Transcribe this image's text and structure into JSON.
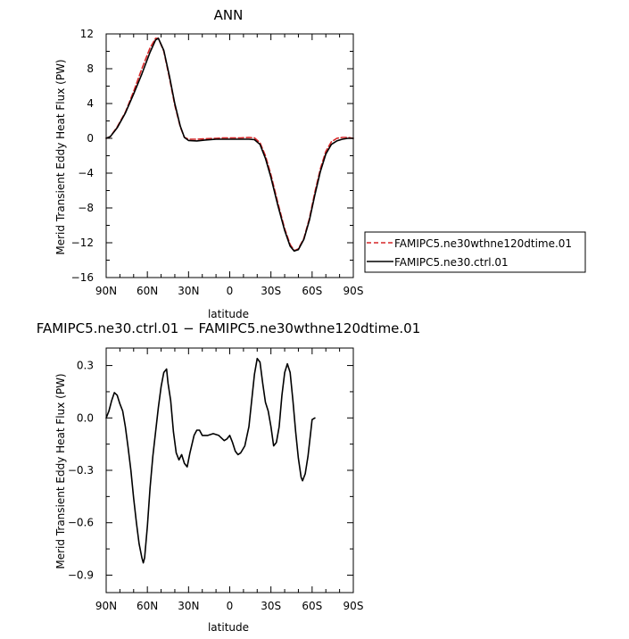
{
  "chart_data": [
    {
      "type": "line",
      "title": "ANN",
      "xlabel": "latitude",
      "ylabel": "Merid Transient Eddy Heat Flux (PW)",
      "x_tick_labels": [
        "90N",
        "60N",
        "30N",
        "0",
        "30S",
        "60S",
        "90S"
      ],
      "x_tick_values": [
        90,
        60,
        30,
        0,
        -30,
        -60,
        -90
      ],
      "xlim": [
        90,
        -90
      ],
      "ylim": [
        -16,
        12
      ],
      "y_ticks": [
        12,
        8,
        4,
        0,
        -4,
        -8,
        -12,
        -16
      ],
      "y_tick_labels": [
        "12",
        "8",
        "4",
        "0",
        "−4",
        "−8",
        "−12",
        "−16"
      ],
      "legend_placement": "right",
      "series": [
        {
          "name": "FAMIPC5.ne30wthne120dtime.01",
          "color": "#d62728",
          "dash": true,
          "points": [
            [
              90,
              0
            ],
            [
              87,
              0.2
            ],
            [
              82,
              1.3
            ],
            [
              76,
              3.0
            ],
            [
              70,
              5.4
            ],
            [
              64,
              8.0
            ],
            [
              58,
              10.4
            ],
            [
              54,
              11.5
            ],
            [
              52,
              11.5
            ],
            [
              48,
              10.0
            ],
            [
              44,
              7.0
            ],
            [
              40,
              3.8
            ],
            [
              36,
              1.3
            ],
            [
              33,
              0.1
            ],
            [
              30,
              -0.1
            ],
            [
              24,
              -0.1
            ],
            [
              18,
              -0.05
            ],
            [
              10,
              0
            ],
            [
              5,
              0.05
            ],
            [
              0,
              0.05
            ],
            [
              -8,
              0.05
            ],
            [
              -14,
              0.1
            ],
            [
              -18,
              0.05
            ],
            [
              -22,
              -0.5
            ],
            [
              -26,
              -2.0
            ],
            [
              -30,
              -4.2
            ],
            [
              -35,
              -7.4
            ],
            [
              -40,
              -10.4
            ],
            [
              -44,
              -12.2
            ],
            [
              -47,
              -12.9
            ],
            [
              -50,
              -12.7
            ],
            [
              -54,
              -11.5
            ],
            [
              -58,
              -9.2
            ],
            [
              -62,
              -6.2
            ],
            [
              -66,
              -3.5
            ],
            [
              -70,
              -1.5
            ],
            [
              -74,
              -0.4
            ],
            [
              -78,
              0.0
            ],
            [
              -82,
              0.1
            ],
            [
              -86,
              0.1
            ],
            [
              -90,
              0
            ]
          ]
        },
        {
          "name": "FAMIPC5.ne30.ctrl.01",
          "color": "#000000",
          "dash": false,
          "points": [
            [
              90,
              0
            ],
            [
              87,
              0.2
            ],
            [
              82,
              1.2
            ],
            [
              76,
              2.9
            ],
            [
              70,
              5.1
            ],
            [
              64,
              7.4
            ],
            [
              58,
              9.9
            ],
            [
              54,
              11.3
            ],
            [
              52,
              11.5
            ],
            [
              48,
              10.1
            ],
            [
              44,
              7.2
            ],
            [
              40,
              4.0
            ],
            [
              36,
              1.4
            ],
            [
              33,
              0.1
            ],
            [
              30,
              -0.25
            ],
            [
              24,
              -0.3
            ],
            [
              18,
              -0.2
            ],
            [
              10,
              -0.1
            ],
            [
              5,
              -0.1
            ],
            [
              0,
              -0.1
            ],
            [
              -8,
              -0.1
            ],
            [
              -14,
              -0.1
            ],
            [
              -18,
              -0.15
            ],
            [
              -22,
              -0.7
            ],
            [
              -26,
              -2.3
            ],
            [
              -30,
              -4.5
            ],
            [
              -35,
              -7.7
            ],
            [
              -40,
              -10.6
            ],
            [
              -44,
              -12.4
            ],
            [
              -47,
              -12.95
            ],
            [
              -50,
              -12.8
            ],
            [
              -54,
              -11.6
            ],
            [
              -58,
              -9.4
            ],
            [
              -62,
              -6.5
            ],
            [
              -66,
              -3.8
            ],
            [
              -70,
              -1.8
            ],
            [
              -74,
              -0.7
            ],
            [
              -78,
              -0.3
            ],
            [
              -82,
              -0.1
            ],
            [
              -86,
              0
            ],
            [
              -90,
              0
            ]
          ]
        }
      ]
    },
    {
      "type": "line",
      "title": "FAMIPC5.ne30.ctrl.01 − FAMIPC5.ne30wthne120dtime.01",
      "xlabel": "latitude",
      "ylabel": "Merid Transient Eddy Heat Flux (PW)",
      "x_tick_labels": [
        "90N",
        "60N",
        "30N",
        "0",
        "30S",
        "60S",
        "90S"
      ],
      "x_tick_values": [
        90,
        60,
        30,
        0,
        -30,
        -60,
        -90
      ],
      "xlim": [
        90,
        -90
      ],
      "ylim": [
        -1.0,
        0.4
      ],
      "y_ticks": [
        0.3,
        0.0,
        -0.3,
        -0.6,
        -0.9
      ],
      "y_tick_labels": [
        "0.3",
        "0.0",
        "−0.3",
        "−0.6",
        "−0.9"
      ],
      "series": [
        {
          "color": "#000000",
          "dash": false,
          "points": [
            [
              90,
              0
            ],
            [
              88,
              0.04
            ],
            [
              86,
              0.1
            ],
            [
              84,
              0.145
            ],
            [
              82,
              0.13
            ],
            [
              80,
              0.08
            ],
            [
              78,
              0.04
            ],
            [
              76,
              -0.05
            ],
            [
              74,
              -0.17
            ],
            [
              72,
              -0.3
            ],
            [
              70,
              -0.46
            ],
            [
              68,
              -0.6
            ],
            [
              66,
              -0.72
            ],
            [
              64,
              -0.8
            ],
            [
              63,
              -0.83
            ],
            [
              62,
              -0.8
            ],
            [
              60,
              -0.62
            ],
            [
              58,
              -0.4
            ],
            [
              56,
              -0.22
            ],
            [
              54,
              -0.08
            ],
            [
              52,
              0.06
            ],
            [
              50,
              0.18
            ],
            [
              48,
              0.26
            ],
            [
              46,
              0.28
            ],
            [
              45,
              0.2
            ],
            [
              43,
              0.1
            ],
            [
              41,
              -0.08
            ],
            [
              39,
              -0.2
            ],
            [
              37,
              -0.24
            ],
            [
              35,
              -0.21
            ],
            [
              33,
              -0.26
            ],
            [
              31,
              -0.28
            ],
            [
              29,
              -0.2
            ],
            [
              26,
              -0.1
            ],
            [
              24,
              -0.07
            ],
            [
              22,
              -0.07
            ],
            [
              20,
              -0.1
            ],
            [
              16,
              -0.1
            ],
            [
              12,
              -0.09
            ],
            [
              8,
              -0.1
            ],
            [
              4,
              -0.13
            ],
            [
              2,
              -0.12
            ],
            [
              0,
              -0.1
            ],
            [
              -2,
              -0.14
            ],
            [
              -4,
              -0.19
            ],
            [
              -6,
              -0.21
            ],
            [
              -8,
              -0.2
            ],
            [
              -11,
              -0.16
            ],
            [
              -14,
              -0.05
            ],
            [
              -16,
              0.1
            ],
            [
              -18,
              0.25
            ],
            [
              -20,
              0.34
            ],
            [
              -22,
              0.32
            ],
            [
              -24,
              0.2
            ],
            [
              -26,
              0.09
            ],
            [
              -28,
              0.04
            ],
            [
              -30,
              -0.05
            ],
            [
              -32,
              -0.16
            ],
            [
              -34,
              -0.14
            ],
            [
              -36,
              -0.05
            ],
            [
              -38,
              0.13
            ],
            [
              -40,
              0.26
            ],
            [
              -42,
              0.31
            ],
            [
              -44,
              0.26
            ],
            [
              -46,
              0.1
            ],
            [
              -48,
              -0.08
            ],
            [
              -50,
              -0.23
            ],
            [
              -52,
              -0.34
            ],
            [
              -53,
              -0.36
            ],
            [
              -55,
              -0.32
            ],
            [
              -57,
              -0.22
            ],
            [
              -59,
              -0.08
            ],
            [
              -60,
              -0.01
            ],
            [
              -62,
              0
            ]
          ]
        }
      ]
    }
  ]
}
